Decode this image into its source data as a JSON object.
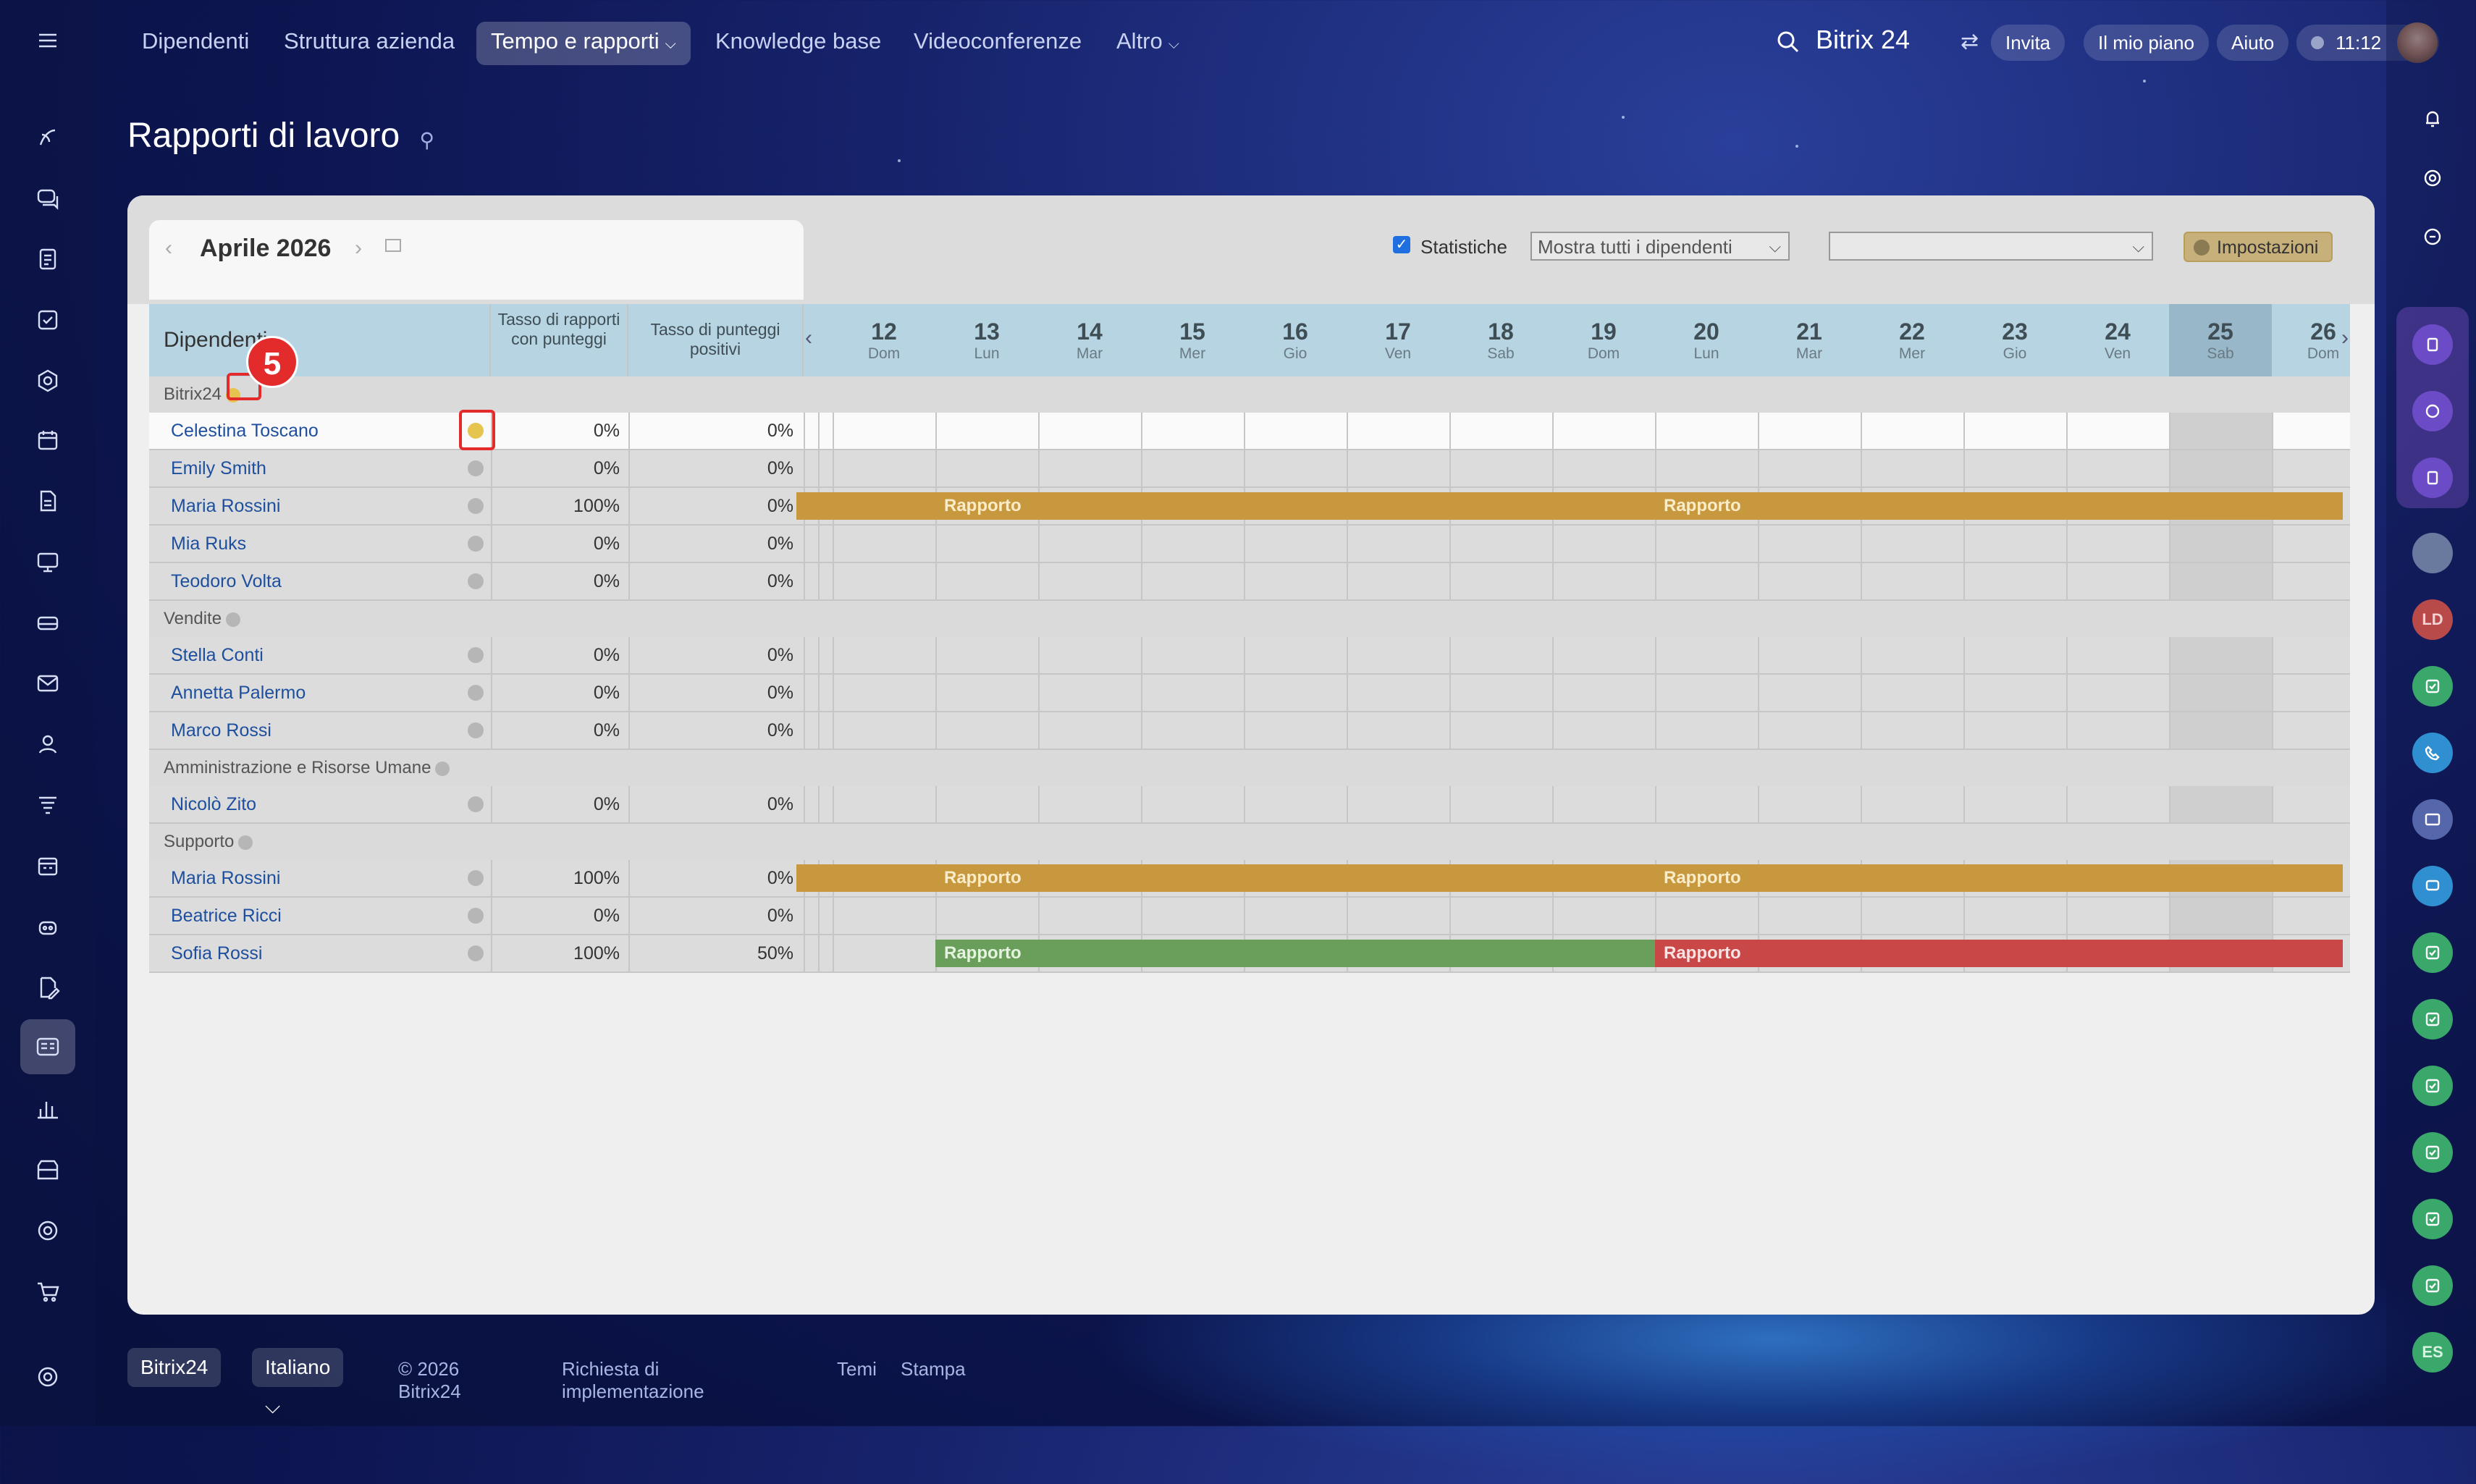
{
  "topbar": {
    "nav": [
      "Dipendenti",
      "Struttura azienda",
      "Tempo e rapporti",
      "Knowledge base",
      "Videoconferenze",
      "Altro"
    ],
    "brand": "Bitrix 24",
    "invite": "Invita",
    "plan": "Il mio piano",
    "help": "Aiuto",
    "time": "11:12"
  },
  "page": {
    "title": "Rapporti di lavoro"
  },
  "toolbar": {
    "month": "Aprile 2026",
    "statistics_label": "Statistiche",
    "filter_select": "Mostra tutti i dipendenti",
    "settings_label": "Impostazioni"
  },
  "table": {
    "header_name": "Dipendenti",
    "header_rate": "Tasso di rapporti con punteggi",
    "header_positive": "Tasso di punteggi positivi",
    "days": [
      {
        "num": "12",
        "dow": "Dom"
      },
      {
        "num": "13",
        "dow": "Lun"
      },
      {
        "num": "14",
        "dow": "Mar"
      },
      {
        "num": "15",
        "dow": "Mer"
      },
      {
        "num": "16",
        "dow": "Gio"
      },
      {
        "num": "17",
        "dow": "Ven"
      },
      {
        "num": "18",
        "dow": "Sab"
      },
      {
        "num": "19",
        "dow": "Dom"
      },
      {
        "num": "20",
        "dow": "Lun"
      },
      {
        "num": "21",
        "dow": "Mar"
      },
      {
        "num": "22",
        "dow": "Mer"
      },
      {
        "num": "23",
        "dow": "Gio"
      },
      {
        "num": "24",
        "dow": "Ven"
      },
      {
        "num": "25",
        "dow": "Sab"
      },
      {
        "num": "26",
        "dow": "Dom"
      }
    ],
    "groups": [
      {
        "name": "Bitrix24",
        "rows": [
          {
            "name": "Celestina Toscano",
            "rate": "0%",
            "positive": "0%"
          },
          {
            "name": "Emily Smith",
            "rate": "0%",
            "positive": "0%"
          },
          {
            "name": "Maria Rossini",
            "rate": "100%",
            "positive": "0%"
          },
          {
            "name": "Mia Ruks",
            "rate": "0%",
            "positive": "0%"
          },
          {
            "name": "Teodoro Volta",
            "rate": "0%",
            "positive": "0%"
          }
        ]
      },
      {
        "name": "Vendite",
        "rows": [
          {
            "name": "Stella Conti",
            "rate": "0%",
            "positive": "0%"
          },
          {
            "name": "Annetta Palermo",
            "rate": "0%",
            "positive": "0%"
          },
          {
            "name": "Marco Rossi",
            "rate": "0%",
            "positive": "0%"
          }
        ]
      },
      {
        "name": "Amministrazione e Risorse Umane",
        "rows": [
          {
            "name": "Nicolò Zito",
            "rate": "0%",
            "positive": "0%"
          }
        ]
      },
      {
        "name": "Supporto",
        "rows": [
          {
            "name": "Maria Rossini",
            "rate": "100%",
            "positive": "0%"
          },
          {
            "name": "Beatrice Ricci",
            "rate": "0%",
            "positive": "0%"
          },
          {
            "name": "Sofia Rossi",
            "rate": "100%",
            "positive": "50%"
          }
        ]
      }
    ],
    "report_label": "Rapporto"
  },
  "annotation": {
    "step": "5"
  },
  "footer": {
    "brand": "Bitrix24",
    "language": "Italiano",
    "copyright": "© 2026 Bitrix24",
    "links": [
      "Richiesta di implementazione",
      "Temi",
      "Stampa"
    ]
  },
  "right_avatars": [
    "LD",
    "ES"
  ],
  "colors": {
    "report_gold": "#c8983f",
    "report_green": "#6a9e5b",
    "report_red": "#c94746",
    "highlight": "#e32b2b"
  }
}
